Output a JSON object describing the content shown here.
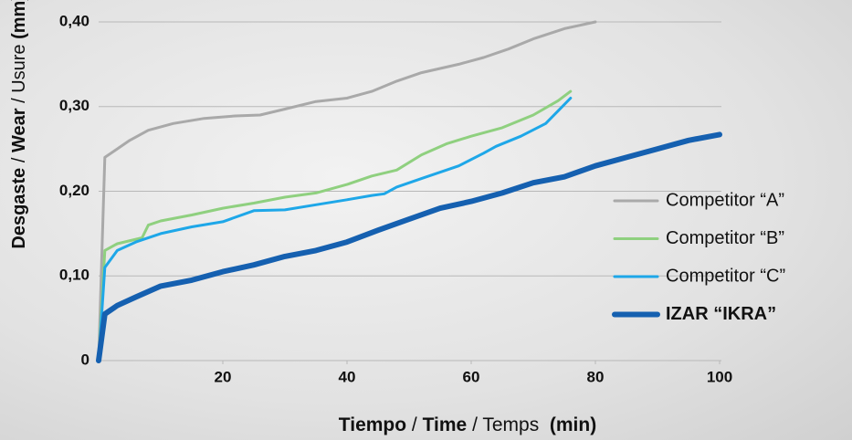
{
  "chart_data": {
    "type": "line",
    "xlabel": [
      "Tiempo",
      " / ",
      "Time",
      " / Temps  ",
      "(min)"
    ],
    "ylabel": [
      "Desgaste",
      " / ",
      "Wear",
      " / Usure ",
      "(mm)"
    ],
    "xlim": [
      0,
      100
    ],
    "ylim": [
      0,
      0.42
    ],
    "xticks": [
      20,
      40,
      60,
      80,
      100
    ],
    "yticks": [
      0,
      {
        "value": 0.1,
        "label": "0,10"
      },
      {
        "value": 0.2,
        "label": "0,20"
      },
      {
        "value": 0.3,
        "label": "0,30"
      },
      {
        "value": 0.4,
        "label": "0,40"
      }
    ],
    "grid": true,
    "legend": "right",
    "series": [
      {
        "name": "Competitor “A”",
        "color": "#a9a9a9",
        "x": [
          0,
          1,
          3,
          5,
          8,
          12,
          17,
          22,
          26,
          30,
          35,
          40,
          44,
          48,
          52,
          58,
          62,
          66,
          70,
          75,
          80
        ],
        "values": [
          0,
          0.24,
          0.25,
          0.26,
          0.272,
          0.28,
          0.286,
          0.289,
          0.29,
          0.297,
          0.306,
          0.31,
          0.318,
          0.33,
          0.34,
          0.35,
          0.358,
          0.368,
          0.38,
          0.392,
          0.4
        ]
      },
      {
        "name": "Competitor “B”",
        "color": "#8fd07f",
        "x": [
          0,
          1,
          3,
          7,
          8,
          10,
          15,
          20,
          25,
          30,
          35,
          40,
          44,
          48,
          52,
          56,
          60,
          65,
          70,
          74,
          76
        ],
        "values": [
          0,
          0.13,
          0.138,
          0.145,
          0.16,
          0.165,
          0.172,
          0.18,
          0.186,
          0.193,
          0.198,
          0.208,
          0.218,
          0.225,
          0.243,
          0.256,
          0.265,
          0.275,
          0.29,
          0.307,
          0.318
        ]
      },
      {
        "name": "Competitor “C”",
        "color": "#1ea7e8",
        "x": [
          0,
          1,
          3,
          6,
          10,
          15,
          20,
          25,
          30,
          35,
          40,
          44,
          46,
          48,
          52,
          58,
          62,
          64,
          68,
          72,
          74,
          76
        ],
        "values": [
          0,
          0.11,
          0.13,
          0.14,
          0.15,
          0.158,
          0.164,
          0.177,
          0.178,
          0.184,
          0.19,
          0.195,
          0.197,
          0.205,
          0.215,
          0.23,
          0.245,
          0.253,
          0.265,
          0.28,
          0.295,
          0.31
        ]
      },
      {
        "name": "IZAR “IKRA”",
        "color": "#1560b0",
        "x": [
          0,
          1,
          3,
          6,
          10,
          15,
          20,
          25,
          30,
          35,
          40,
          45,
          50,
          55,
          60,
          65,
          70,
          75,
          80,
          85,
          90,
          95,
          100
        ],
        "values": [
          0,
          0.055,
          0.065,
          0.075,
          0.088,
          0.095,
          0.105,
          0.113,
          0.123,
          0.13,
          0.14,
          0.154,
          0.167,
          0.18,
          0.188,
          0.198,
          0.21,
          0.217,
          0.23,
          0.24,
          0.25,
          0.26,
          0.267
        ]
      }
    ]
  }
}
